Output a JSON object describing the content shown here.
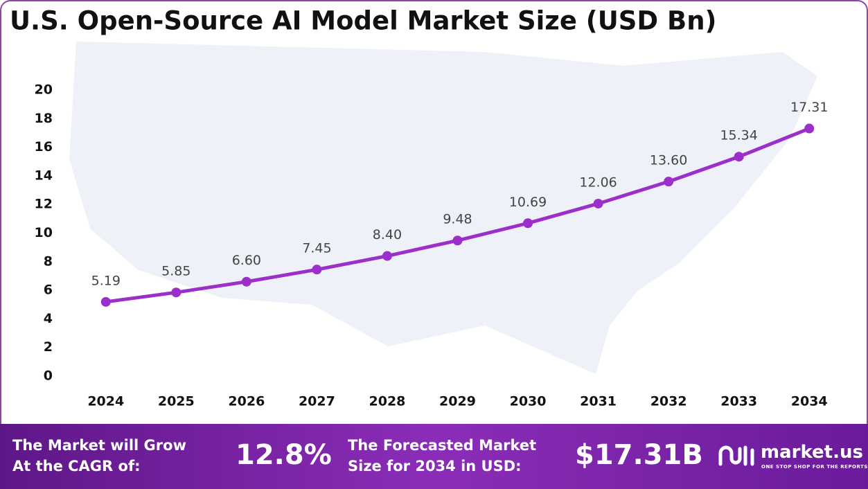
{
  "chart_data": {
    "type": "line",
    "title": "U.S. Open-Source AI Model Market Size (USD Bn)",
    "categories": [
      "2024",
      "2025",
      "2026",
      "2027",
      "2028",
      "2029",
      "2030",
      "2031",
      "2032",
      "2033",
      "2034"
    ],
    "values": [
      5.19,
      5.85,
      6.6,
      7.45,
      8.4,
      9.48,
      10.69,
      12.06,
      13.6,
      15.34,
      17.31
    ],
    "value_labels": [
      "5.19",
      "5.85",
      "6.60",
      "7.45",
      "8.40",
      "9.48",
      "10.69",
      "12.06",
      "13.60",
      "15.34",
      "17.31"
    ],
    "color": "#9c2fc9",
    "ylim": [
      0,
      20
    ],
    "yticks": [
      0,
      2,
      4,
      6,
      8,
      10,
      12,
      14,
      16,
      18,
      20
    ],
    "grid": false
  },
  "footer": {
    "cagr_text": [
      "The Market will Grow",
      "At the CAGR of:"
    ],
    "cagr_value": "12.8%",
    "forecast_text": [
      "The Forecasted Market",
      "Size for 2034 in USD:"
    ],
    "forecast_value": "$17.31B",
    "brand": "market.us",
    "tagline": "ONE STOP SHOP FOR THE REPORTS"
  }
}
